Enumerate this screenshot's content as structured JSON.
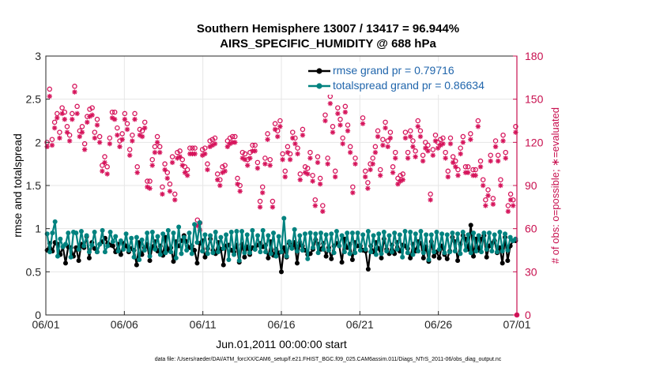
{
  "chart_data": {
    "type": "line",
    "title": "Southern Hemisphere 13007 / 13417 = 96.944%",
    "subtitle": "AIRS_SPECIFIC_HUMIDITY @ 688 hPa",
    "xlabel": "Jun.01,2011 00:00:00 start",
    "ylabel": "rmse and totalspread",
    "y2label": "# of obs: o=possible; ∗=evaluated",
    "footer": "data file: /Users/raeder/DAI/ATM_forcXX/CAM6_setup/f.e21.FHIST_BGC.f09_025.CAM6assim.011/Diags_NTrS_2011-06/obs_diag_output.nc",
    "x_ticks": [
      "06/01",
      "06/06",
      "06/11",
      "06/16",
      "06/21",
      "06/26",
      "07/01"
    ],
    "xlim_days": [
      0,
      30
    ],
    "ylim": [
      0,
      3
    ],
    "y_ticks": [
      "0",
      "0.5",
      "1",
      "1.5",
      "2",
      "2.5",
      "3"
    ],
    "y2lim": [
      0,
      180
    ],
    "y2_ticks": [
      "0",
      "30",
      "60",
      "90",
      "120",
      "150",
      "180"
    ],
    "legend_position": "top-right",
    "colors": {
      "rmse": "#000000",
      "spread": "#00827f",
      "obs": "#d6155c",
      "axis2": "#c8104f",
      "legend_text": "#2166ac"
    },
    "series": [
      {
        "name": "rmse grand pr = 0.79716",
        "key": "rmse",
        "values": [
          0.75,
          0.83,
          0.74,
          0.84,
          0.82,
          0.7,
          0.79,
          0.6,
          0.79,
          0.78,
          0.68,
          0.78,
          0.63,
          0.82,
          0.78,
          0.91,
          0.66,
          0.84,
          0.77,
          0.73,
          0.82,
          0.85,
          0.89,
          0.83,
          0.81,
          0.8,
          0.73,
          0.82,
          0.7,
          0.83,
          0.8,
          0.73,
          0.77,
          0.75,
          0.58,
          0.84,
          0.7,
          0.78,
          0.82,
          0.63,
          0.79,
          0.85,
          0.74,
          0.8,
          0.69,
          0.9,
          0.75,
          0.78,
          0.62,
          0.85,
          0.8,
          0.86,
          0.92,
          0.85,
          0.78,
          0.8,
          0.75,
          0.6,
          0.83,
          0.86,
          0.67,
          0.77,
          0.88,
          0.75,
          0.71,
          0.84,
          0.76,
          0.58,
          0.8,
          0.81,
          0.75,
          0.73,
          0.81,
          0.61,
          0.82,
          0.67,
          0.79,
          0.7,
          0.78,
          0.76,
          0.81,
          0.83,
          0.79,
          0.81,
          0.66,
          0.85,
          0.69,
          0.76,
          0.72,
          0.5,
          0.78,
          0.67,
          0.83,
          0.79,
          0.84,
          0.6,
          0.84,
          0.8,
          0.75,
          0.7,
          0.71,
          0.76,
          0.87,
          0.82,
          0.76,
          0.83,
          0.68,
          0.78,
          0.65,
          0.8,
          0.83,
          0.8,
          0.61,
          0.88,
          0.78,
          0.82,
          0.64,
          0.84,
          0.8,
          0.8,
          0.75,
          0.74,
          0.53,
          0.8,
          0.73,
          0.84,
          0.77,
          0.66,
          0.88,
          0.76,
          0.71,
          0.81,
          0.71,
          0.84,
          0.74,
          0.81,
          0.8,
          0.77,
          0.66,
          0.82,
          0.74,
          0.85,
          0.83,
          0.66,
          0.79,
          0.62,
          0.85,
          0.68,
          0.73,
          0.66,
          0.8,
          0.7,
          0.65,
          0.74,
          0.9,
          0.85,
          0.63,
          0.82,
          0.92,
          0.88,
          0.76,
          1.04,
          0.68,
          0.88,
          0.75,
          0.88,
          0.92,
          0.67,
          0.8,
          0.83,
          0.86,
          0.72,
          0.78,
          0.6,
          0.9,
          0.63,
          0.8,
          0.86,
          0.86
        ]
      },
      {
        "name": "totalspread grand pr = 0.86634",
        "key": "spread",
        "values": [
          0.94,
          0.73,
          0.95,
          1.08,
          0.68,
          0.88,
          0.79,
          0.82,
          0.95,
          0.67,
          0.96,
          0.95,
          0.76,
          0.97,
          0.8,
          0.92,
          0.73,
          0.81,
          0.96,
          0.73,
          0.82,
          0.98,
          0.73,
          0.8,
          0.96,
          0.85,
          0.91,
          0.74,
          0.86,
          0.76,
          0.94,
          0.75,
          0.89,
          0.67,
          0.9,
          0.64,
          0.87,
          0.75,
          0.95,
          0.68,
          0.96,
          0.76,
          0.91,
          0.7,
          0.94,
          0.72,
          0.98,
          0.73,
          0.95,
          0.66,
          1.02,
          0.71,
          0.9,
          0.75,
          0.95,
          0.71,
          1.05,
          0.84,
          1.07,
          0.74,
          0.93,
          0.71,
          0.92,
          0.72,
          0.96,
          0.73,
          0.9,
          0.77,
          0.93,
          0.64,
          0.96,
          0.7,
          0.97,
          0.63,
          0.97,
          0.72,
          0.93,
          0.72,
          0.98,
          0.76,
          0.92,
          0.73,
          0.98,
          0.73,
          0.92,
          0.71,
          0.95,
          0.68,
          0.91,
          0.73,
          1.12,
          0.68,
          0.85,
          0.77,
          0.99,
          0.74,
          0.92,
          0.75,
          0.94,
          0.65,
          0.95,
          0.78,
          0.94,
          0.72,
          0.95,
          0.76,
          0.93,
          0.75,
          0.94,
          0.72,
          0.97,
          0.8,
          0.92,
          0.73,
          0.95,
          0.71,
          0.95,
          0.72,
          0.95,
          0.75,
          0.93,
          0.76,
          0.97,
          0.73,
          0.92,
          0.7,
          0.94,
          0.71,
          0.96,
          0.74,
          0.92,
          0.73,
          0.95,
          0.76,
          0.93,
          0.67,
          0.97,
          0.72,
          0.96,
          0.7,
          0.94,
          0.74,
          0.97,
          0.72,
          0.93,
          0.64,
          0.93,
          0.73,
          0.96,
          0.76,
          0.94,
          0.72,
          0.93,
          0.73,
          0.95,
          0.74,
          0.94,
          0.71,
          0.96,
          0.75,
          0.93,
          0.72,
          0.95,
          0.74,
          0.92,
          0.73,
          0.95,
          0.76,
          0.95,
          0.74,
          0.93,
          0.73,
          0.96,
          0.74,
          0.94,
          0.75,
          0.9,
          0.86,
          0.88
        ]
      },
      {
        "name": "possible",
        "key": "possible",
        "marker": "circle",
        "axis": "right",
        "values": [
          120,
          157,
          122,
          134,
          140,
          127,
          144,
          141,
          131,
          125,
          140,
          159,
          145,
          128,
          131,
          119,
          138,
          143,
          144,
          127,
          136,
          124,
          104,
          110,
          103,
          123,
          141,
          141,
          130,
          121,
          126,
          140,
          133,
          115,
          125,
          140,
          103,
          129,
          128,
          134,
          93,
          93,
          108,
          117,
          124,
          117,
          89,
          105,
          99,
          91,
          110,
          84,
          113,
          114,
          108,
          103,
          101,
          116,
          116,
          116,
          66,
          64,
          115,
          116,
          105,
          121,
          122,
          123,
          98,
          94,
          103,
          104,
          121,
          123,
          124,
          124,
          95,
          90,
          113,
          112,
          108,
          113,
          118,
          118,
          106,
          79,
          89,
          109,
          126,
          108,
          79,
          133,
          128,
          135,
          112,
          100,
          117,
          112,
          127,
          123,
          116,
          98,
          129,
          103,
          102,
          113,
          97,
          80,
          110,
          95,
          76,
          139,
          109,
          152,
          131,
          100,
          144,
          136,
          123,
          145,
          132,
          117,
          89,
          109,
          160,
          163,
          137,
          100,
          92,
          105,
          109,
          117,
          128,
          101,
          122,
          134,
          121,
          127,
          103,
          113,
          95,
          97,
          98,
          127,
          113,
          128,
          121,
          114,
          135,
          128,
          111,
          120,
          118,
          84,
          115,
          125,
          120,
          122,
          123,
          113,
          100,
          123,
          110,
          107,
          101,
          116,
          124,
          103,
          103,
          126,
          101,
          101,
          135,
          107,
          94,
          80,
          87,
          111,
          81,
          121,
          111,
          94,
          125,
          113,
          76,
          84,
          80,
          131
        ]
      },
      {
        "name": "evaluated",
        "key": "evaluated",
        "marker": "asterisk",
        "axis": "right",
        "values": [
          117,
          152,
          118,
          130,
          137,
          123,
          140,
          136,
          127,
          121,
          136,
          155,
          140,
          124,
          127,
          115,
          134,
          138,
          139,
          123,
          132,
          120,
          100,
          106,
          98,
          119,
          137,
          136,
          125,
          117,
          122,
          136,
          129,
          111,
          121,
          136,
          99,
          125,
          124,
          130,
          89,
          88,
          104,
          113,
          120,
          113,
          84,
          101,
          95,
          86,
          106,
          80,
          109,
          110,
          104,
          99,
          97,
          112,
          112,
          112,
          62,
          59,
          111,
          112,
          101,
          117,
          118,
          119,
          94,
          90,
          99,
          100,
          117,
          119,
          120,
          120,
          91,
          86,
          109,
          108,
          104,
          109,
          114,
          114,
          102,
          75,
          85,
          105,
          122,
          104,
          75,
          129,
          124,
          131,
          108,
          96,
          113,
          108,
          123,
          119,
          112,
          94,
          125,
          99,
          98,
          109,
          93,
          76,
          106,
          91,
          72,
          135,
          105,
          147,
          127,
          96,
          140,
          132,
          119,
          141,
          128,
          113,
          85,
          105,
          156,
          159,
          133,
          96,
          88,
          101,
          105,
          113,
          124,
          97,
          118,
          130,
          117,
          123,
          99,
          109,
          91,
          93,
          94,
          123,
          109,
          124,
          117,
          110,
          131,
          124,
          107,
          116,
          114,
          80,
          111,
          121,
          116,
          118,
          119,
          109,
          96,
          119,
          106,
          103,
          97,
          112,
          120,
          99,
          99,
          122,
          97,
          97,
          131,
          103,
          90,
          76,
          83,
          107,
          77,
          117,
          107,
          90,
          121,
          109,
          72,
          80,
          76,
          127
        ]
      }
    ]
  }
}
